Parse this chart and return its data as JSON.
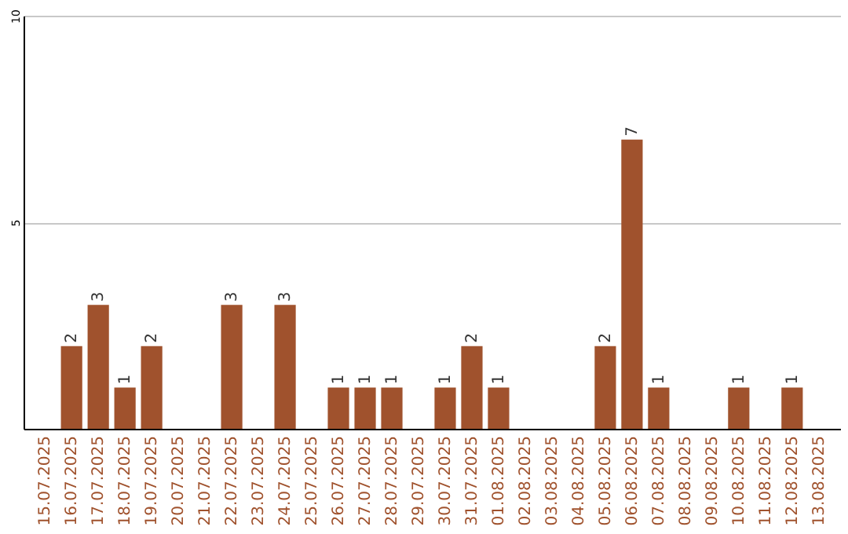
{
  "chart_data": {
    "type": "bar",
    "categories": [
      "15.07.2025",
      "16.07.2025",
      "17.07.2025",
      "18.07.2025",
      "19.07.2025",
      "20.07.2025",
      "21.07.2025",
      "22.07.2025",
      "23.07.2025",
      "24.07.2025",
      "25.07.2025",
      "26.07.2025",
      "27.07.2025",
      "28.07.2025",
      "29.07.2025",
      "30.07.2025",
      "31.07.2025",
      "01.08.2025",
      "02.08.2025",
      "03.08.2025",
      "04.08.2025",
      "05.08.2025",
      "06.08.2025",
      "07.08.2025",
      "08.08.2025",
      "09.08.2025",
      "10.08.2025",
      "11.08.2025",
      "12.08.2025",
      "13.08.2025"
    ],
    "values": [
      0,
      2,
      3,
      1,
      2,
      0,
      0,
      3,
      0,
      3,
      0,
      1,
      1,
      1,
      0,
      1,
      2,
      1,
      0,
      0,
      0,
      2,
      7,
      1,
      0,
      0,
      1,
      0,
      1,
      0
    ],
    "value_labels": [
      null,
      "2",
      "3",
      "1",
      "2",
      null,
      null,
      "3",
      null,
      "3",
      null,
      "1",
      "1",
      "1",
      null,
      "1",
      "2",
      "1",
      null,
      null,
      null,
      "2",
      "7",
      "1",
      null,
      null,
      "1",
      null,
      "1",
      null
    ],
    "color": "#a0522d",
    "ylim": [
      0,
      10
    ],
    "yticks": [
      5,
      10
    ],
    "grid": "y"
  }
}
